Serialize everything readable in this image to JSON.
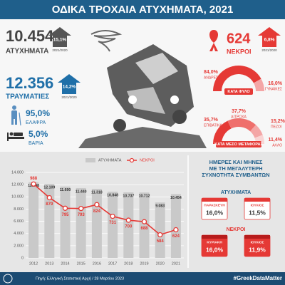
{
  "header": {
    "title": "ΟΔΙΚΑ ΤΡΟΧΑΙΑ ΑΤΥΧΗΜΑΤΑ, 2021"
  },
  "accidents": {
    "value": "10.454",
    "label": "ΑΤΥΧΗΜΑΤΑ",
    "change": "15,1%",
    "period": "2021/2020"
  },
  "injured": {
    "value": "12.356",
    "label": "ΤΡΑΥΜΑΤΙΕΣ",
    "change": "14,2%",
    "period": "2021/2020",
    "light": {
      "value": "95,0%",
      "label": "ΕΛΑΦΡΑ"
    },
    "severe": {
      "value": "5,0%",
      "label": "ΒΑΡΙΑ"
    }
  },
  "deaths": {
    "value": "624",
    "label": "ΝΕΚΡΟΙ",
    "change": "6,8%",
    "period": "2021/2020"
  },
  "by_gender": {
    "title": "ΚΑΤΑ ΦΥΛΟ",
    "segments": [
      {
        "name": "ΑΝΔΡΕΣ",
        "value": 84.0,
        "label": "84,0%",
        "color": "#e53935"
      },
      {
        "name": "ΓΥΝΑΙΚΕΣ",
        "value": 16.0,
        "label": "16,0%",
        "color": "#f4a6a6"
      }
    ]
  },
  "by_mode": {
    "title": "ΚΑΤΑ ΜΕΣΟ ΜΕΤΑΦΟΡΑΣ",
    "segments": [
      {
        "name": "ΕΠΙΒΑΤΙΚΑ",
        "value": 35.7,
        "label": "35,7%",
        "color": "#e53935"
      },
      {
        "name": "ΔΙΤΡΟΧΑ",
        "value": 37.7,
        "label": "37,7%",
        "color": "#ef6f6c"
      },
      {
        "name": "ΠΕΖΟΙ",
        "value": 15.2,
        "label": "15,2%",
        "color": "#f4a6a6"
      },
      {
        "name": "ΑΛΛΟ",
        "value": 11.4,
        "label": "11,4%",
        "color": "#f9d4d4"
      }
    ]
  },
  "chart_data": {
    "type": "bar",
    "categories": [
      "2012",
      "2013",
      "2014",
      "2015",
      "2016",
      "2017",
      "2018",
      "2019",
      "2020",
      "2021"
    ],
    "series": [
      {
        "name": "ΑΤΥΧΗΜΑΤΑ",
        "type": "bar",
        "color": "#c9c9c9",
        "values": [
          12398,
          12109,
          11690,
          11440,
          11318,
          10848,
          10737,
          10712,
          9083,
          10454
        ],
        "value_labels": [
          "12.398",
          "12.109",
          "11.690",
          "11.440",
          "11.318",
          "10.848",
          "10.737",
          "10.712",
          "9.083",
          "10.454"
        ]
      },
      {
        "name": "ΝΕΚΡΟΙ",
        "type": "line",
        "axis": "y2",
        "color": "#e53935",
        "values": [
          988,
          879,
          795,
          793,
          824,
          731,
          700,
          688,
          584,
          624
        ]
      }
    ],
    "ylim": [
      0,
      14000
    ],
    "yticks": [
      0,
      {
        "value": 2000,
        "label": "2.000"
      },
      {
        "value": 4000,
        "label": "4.000"
      },
      {
        "value": 6000,
        "label": "6.000"
      },
      {
        "value": 8000,
        "label": "8.000"
      },
      {
        "value": 10000,
        "label": "10.000"
      },
      {
        "value": 12000,
        "label": "12.000"
      },
      {
        "value": 14000,
        "label": "14.000"
      }
    ],
    "y2lim": [
      400,
      1080
    ],
    "grid": true,
    "legend": "top"
  },
  "frequency": {
    "title_lines": [
      "ΗΜΕΡΕΣ ΚΑΙ ΜΗΝΕΣ",
      "ΜΕ ΤΗ ΜΕΓΑΛΥΤΕΡΗ",
      "ΣΥΧΝΟΤΗΤΑ ΣΥΜΒΑΝΤΩΝ"
    ],
    "groups": [
      {
        "name": "ΑΤΥΧΗΜΑΤΑ",
        "items": [
          {
            "label": "ΠΑΡΑΣΚΕΥΗ",
            "value": "16,0%"
          },
          {
            "label": "ΙΟΥΛΙΟΣ",
            "value": "11,5%"
          }
        ]
      },
      {
        "name": "ΝΕΚΡΟΙ",
        "items": [
          {
            "label": "ΚΥΡΙΑΚΗ",
            "value": "16,0%"
          },
          {
            "label": "ΙΟΥΛΙΟΣ",
            "value": "11,9%"
          }
        ]
      }
    ]
  },
  "footer": {
    "source": "Πηγή: Ελληνική Στατιστική Αρχή / 28 Μαρτίου 2023",
    "hashtag": "#GreekDataMatter"
  }
}
